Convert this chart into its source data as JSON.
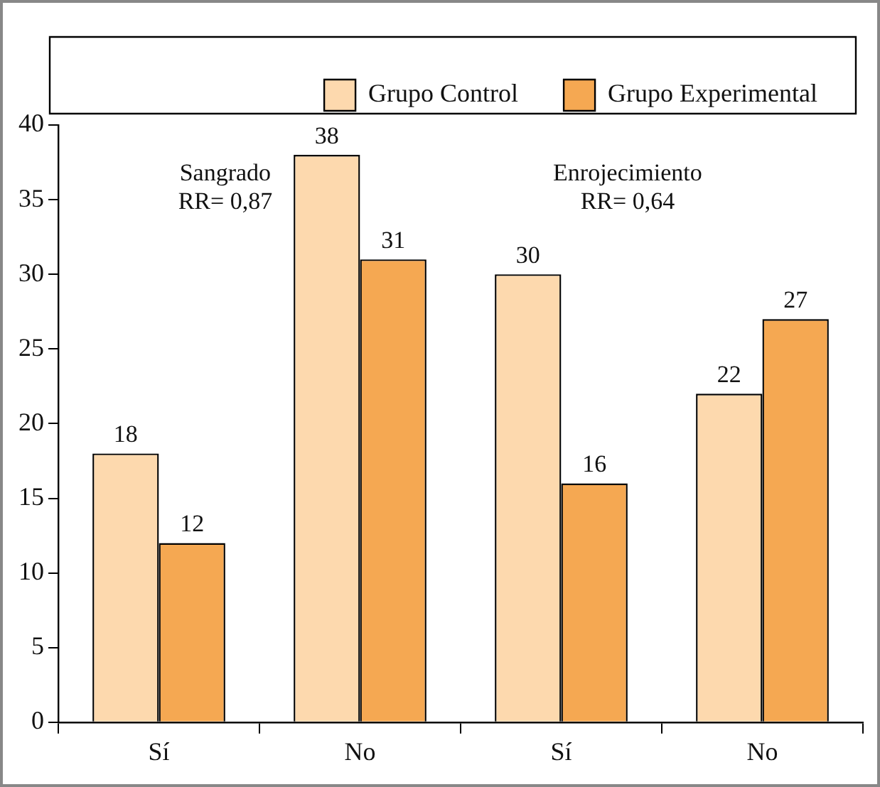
{
  "chart_data": {
    "type": "bar",
    "categories": [
      "Sí",
      "No",
      "Sí",
      "No"
    ],
    "series": [
      {
        "name": "Grupo Control",
        "color": "#fdd9ae",
        "values": [
          18,
          38,
          30,
          22
        ]
      },
      {
        "name": "Grupo Experimental",
        "color": "#f5a852",
        "values": [
          12,
          31,
          16,
          27
        ]
      }
    ],
    "ylim": [
      0,
      40
    ],
    "yticks": [
      0,
      5,
      10,
      15,
      20,
      25,
      30,
      35,
      40
    ],
    "grid": false,
    "legend": "top",
    "data_labels": true,
    "annotations": [
      "Sangrado\nRR= 0,87",
      "Enrojecimiento\nRR= 0,64"
    ]
  }
}
